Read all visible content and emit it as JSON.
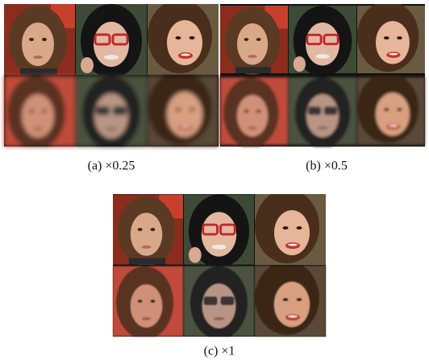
{
  "figure": {
    "subfigures": [
      {
        "caption": "(a) ×0.25"
      },
      {
        "caption": "(b) ×0.5"
      },
      {
        "caption": "(c) ×1"
      }
    ]
  }
}
